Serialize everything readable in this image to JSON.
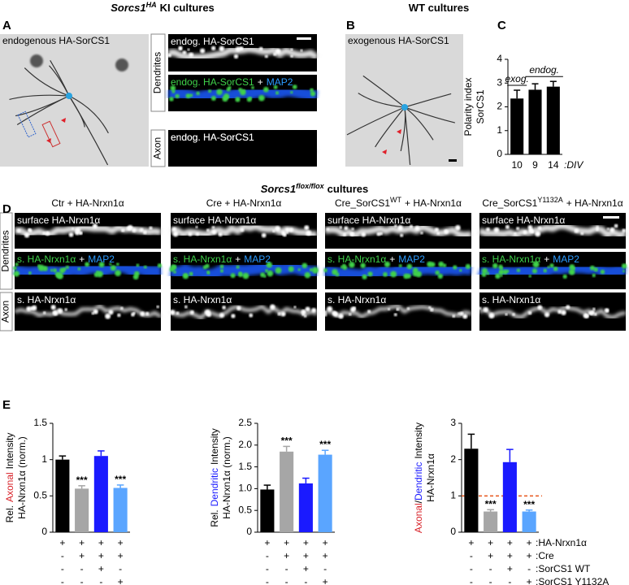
{
  "header": {
    "left": {
      "gene": "Sorcs1",
      "sup": "HA",
      "rest": "KI cultures"
    },
    "right": "WT cultures",
    "middle": {
      "gene": "Sorcs1",
      "sup": "flox/flox",
      "rest": "cultures"
    }
  },
  "panels": {
    "A": {
      "letter": "A",
      "image_label": "endogenous HA-SorCS1",
      "side_dendrites": "Dendrites",
      "side_axon": "Axon",
      "strips": [
        {
          "text": "endog. HA-SorCS1"
        },
        {
          "green": "endog. HA-SorCS1",
          "plus": "+",
          "blue": "MAP2"
        },
        {
          "text": "endog. HA-SorCS1"
        }
      ]
    },
    "B": {
      "letter": "B",
      "image_label": "exogenous HA-SorCS1"
    },
    "C": {
      "letter": "C"
    },
    "D": {
      "letter": "D",
      "side_dendrites": "Dendrites",
      "side_axon": "Axon",
      "columns": [
        {
          "pre": "Ctr + HA-Nrxn1α"
        },
        {
          "pre": "Cre + HA-Nrxn1α"
        },
        {
          "pre": "Cre_SorCS1",
          "sup": "WT",
          "post": "+ HA-Nrxn1α"
        },
        {
          "pre": "Cre_SorCS1",
          "sup": "Y1132A",
          "post": "+ HA-Nrxn1α"
        }
      ],
      "rows": [
        {
          "text": "surface HA-Nrxn1α"
        },
        {
          "green": "s. HA-Nrxn1α",
          "plus": "+",
          "blue": "MAP2"
        },
        {
          "text": "s. HA-Nrxn1α"
        }
      ]
    },
    "E": {
      "letter": "E",
      "conditions": [
        {
          "signs": [
            "+",
            "+",
            "+",
            "+"
          ],
          "label": ":HA-Nrxn1α"
        },
        {
          "signs": [
            "-",
            "+",
            "+",
            "+"
          ],
          "label": ":Cre"
        },
        {
          "signs": [
            "-",
            "-",
            "+",
            "-"
          ],
          "label": ":SorCS1 WT"
        },
        {
          "signs": [
            "-",
            "-",
            "-",
            "+"
          ],
          "label": ":SorCS1 Y1132A"
        }
      ]
    }
  },
  "chart_data": [
    {
      "type": "bar",
      "ylabel": {
        "line1": [
          {
            "text": "Polarity index"
          }
        ],
        "line2": "SorCS1"
      },
      "categories": [
        "10",
        "9",
        "14"
      ],
      "x_suffix": ":DIV",
      "values": [
        2.35,
        2.72,
        2.85
      ],
      "errors": [
        0.35,
        0.25,
        0.22
      ],
      "colors": [
        "#000000",
        "#000000",
        "#000000"
      ],
      "ylim": [
        0,
        4
      ],
      "yticks": [
        0,
        1,
        2,
        3,
        4
      ],
      "annotations": [
        {
          "text": "exog.",
          "from": 0,
          "to": 0
        },
        {
          "text": "endog.",
          "from": 1,
          "to": 2
        }
      ]
    },
    {
      "type": "bar",
      "ylabel": {
        "line1": [
          {
            "text": "Rel."
          },
          {
            "text": "Axonal",
            "color": "#d8232a"
          },
          {
            "text": "Intensity"
          }
        ],
        "line2": "HA-Nrxn1α (norm.)"
      },
      "values": [
        1.0,
        0.6,
        1.05,
        0.61
      ],
      "errors": [
        0.05,
        0.04,
        0.07,
        0.04
      ],
      "colors": [
        "#000000",
        "#a6a6a6",
        "#1a1aff",
        "#5aa5ff"
      ],
      "ylim": [
        0,
        1.5
      ],
      "yticks": [
        0,
        0.5,
        1,
        1.5
      ],
      "significance": [
        {
          "bar": 1,
          "text": "***"
        },
        {
          "bar": 3,
          "text": "***"
        }
      ]
    },
    {
      "type": "bar",
      "ylabel": {
        "line1": [
          {
            "text": "Rel."
          },
          {
            "text": "Dendritic",
            "color": "#1a1aff"
          },
          {
            "text": "Intensity"
          }
        ],
        "line2": "HA-Nrxn1α (norm.)"
      },
      "values": [
        0.98,
        1.85,
        1.12,
        1.78
      ],
      "errors": [
        0.1,
        0.12,
        0.12,
        0.1
      ],
      "colors": [
        "#000000",
        "#a6a6a6",
        "#1a1aff",
        "#5aa5ff"
      ],
      "ylim": [
        0,
        2.5
      ],
      "yticks": [
        0,
        0.5,
        {
          "value": 1,
          "label": "1.0"
        },
        1.5,
        {
          "value": 2,
          "label": "2.0"
        },
        2.5
      ],
      "significance": [
        {
          "bar": 1,
          "text": "***"
        },
        {
          "bar": 3,
          "text": "***"
        }
      ]
    },
    {
      "type": "bar",
      "ylabel": {
        "line1": [
          {
            "text": "Axonal",
            "color": "#d8232a"
          },
          {
            "text": "/"
          },
          {
            "text": "Dendritic",
            "color": "#1a1aff"
          },
          {
            "text": "Intensity"
          }
        ],
        "line2": "HA-Nrxn1α"
      },
      "values": [
        2.3,
        0.57,
        1.93,
        0.57
      ],
      "errors": [
        0.4,
        0.05,
        0.35,
        0.04
      ],
      "colors": [
        "#000000",
        "#a6a6a6",
        "#1a1aff",
        "#5aa5ff"
      ],
      "ylim": [
        0,
        3
      ],
      "yticks": [
        0,
        1,
        2,
        3
      ],
      "reference_line": {
        "value": 1,
        "color": "#e8541a"
      },
      "significance": [
        {
          "bar": 1,
          "text": "***"
        },
        {
          "bar": 3,
          "text": "***"
        }
      ]
    }
  ]
}
